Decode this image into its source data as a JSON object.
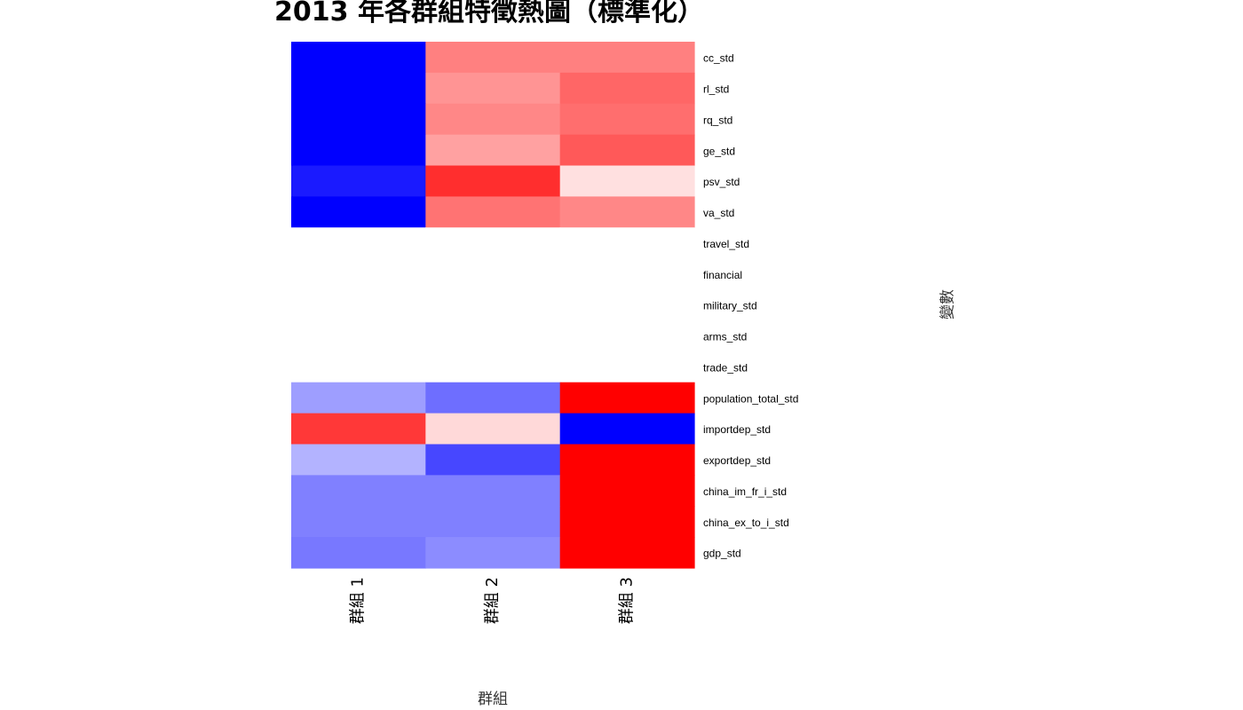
{
  "chart_data": {
    "type": "heatmap",
    "title": "2013 年各群組特徵熱圖（標準化）",
    "xlabel": "群組",
    "ylabel": "變數",
    "columns": [
      "群組 1",
      "群組 2",
      "群組 3"
    ],
    "rows": [
      "cc_std",
      "rl_std",
      "rq_std",
      "ge_std",
      "psv_std",
      "va_std",
      "travel_std",
      "financial",
      "military_std",
      "arms_std",
      "trade_std",
      "population_total_std",
      "importdep_std",
      "exportdep_std",
      "china_im_fr_i_std",
      "china_ex_to_i_std",
      "gdp_std"
    ],
    "values": [
      [
        -1.0,
        0.5,
        0.5
      ],
      [
        -1.0,
        0.42,
        0.6
      ],
      [
        -1.0,
        0.47,
        0.57
      ],
      [
        -1.0,
        0.37,
        0.65
      ],
      [
        -0.9,
        0.82,
        0.12
      ],
      [
        -1.0,
        0.55,
        0.47
      ],
      [
        0,
        0,
        0
      ],
      [
        0,
        0,
        0
      ],
      [
        0,
        0,
        0
      ],
      [
        0,
        0,
        0
      ],
      [
        0,
        0,
        0
      ],
      [
        -0.38,
        -0.57,
        1.0
      ],
      [
        0.78,
        0.15,
        -1.0
      ],
      [
        -0.3,
        -0.72,
        1.0
      ],
      [
        -0.5,
        -0.5,
        1.0
      ],
      [
        -0.5,
        -0.5,
        1.0
      ],
      [
        -0.53,
        -0.45,
        1.0
      ]
    ],
    "value_range": [
      -1,
      1
    ],
    "colorscale": {
      "low": "#0000ff",
      "mid": "#ffffff",
      "high": "#ff0000"
    }
  }
}
